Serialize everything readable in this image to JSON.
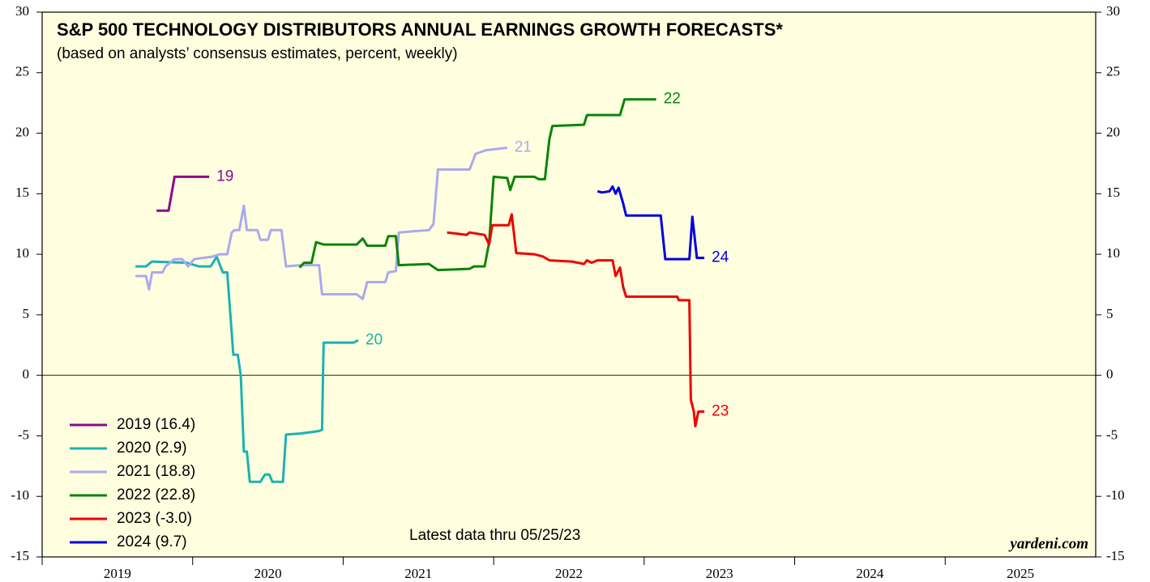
{
  "chart_data": {
    "type": "line",
    "title": "S&P 500 TECHNOLOGY DISTRIBUTORS ANNUAL EARNINGS GROWTH FORECASTS*",
    "subtitle": "(based on analysts’ consensus estimates, percent, weekly)",
    "annotations": [
      "Latest data thru  05/25/23",
      "yardeni.com"
    ],
    "xlim": [
      2019,
      2026
    ],
    "xticks": [
      {
        "value": 2019,
        "label": "2019"
      },
      {
        "value": 2020,
        "label": "2020"
      },
      {
        "value": 2021,
        "label": "2021"
      },
      {
        "value": 2022,
        "label": "2022"
      },
      {
        "value": 2023,
        "label": "2023"
      },
      {
        "value": 2024,
        "label": "2024"
      },
      {
        "value": 2025,
        "label": "2025"
      }
    ],
    "ylim": [
      -15,
      30
    ],
    "yticks": [
      -15,
      -10,
      -5,
      0,
      5,
      10,
      15,
      20,
      25,
      30
    ],
    "y2lim": [
      -15,
      30
    ],
    "y2ticks": [
      -15,
      -10,
      -5,
      0,
      5,
      10,
      15,
      20,
      25,
      30
    ],
    "legend": "lower left",
    "series": [
      {
        "name": "2019 (16.4)",
        "end_label": "19",
        "color": "#8b0a8b",
        "x": [
          2019.76,
          2019.84,
          2019.88,
          2020.11
        ],
        "y": [
          13.6,
          13.6,
          16.4,
          16.4
        ]
      },
      {
        "name": "2020 (2.9)",
        "end_label": "20",
        "color": "#1ab2b2",
        "x": [
          2019.62,
          2019.69,
          2019.73,
          2019.96,
          2020.04,
          2020.12,
          2020.16,
          2020.2,
          2020.23,
          2020.27,
          2020.3,
          2020.32,
          2020.34,
          2020.36,
          2020.38,
          2020.45,
          2020.48,
          2020.51,
          2020.53,
          2020.6,
          2020.62,
          2020.72,
          2020.84,
          2020.86,
          2020.87,
          2021.07,
          2021.1
        ],
        "y": [
          9.0,
          9.0,
          9.4,
          9.3,
          9.0,
          9.0,
          9.8,
          8.5,
          8.5,
          1.7,
          1.7,
          0,
          -6.3,
          -6.3,
          -8.8,
          -8.8,
          -8.2,
          -8.2,
          -8.8,
          -8.8,
          -4.9,
          -4.8,
          -4.6,
          -4.5,
          2.7,
          2.7,
          2.9
        ]
      },
      {
        "name": "2021 (18.8)",
        "end_label": "21",
        "color": "#aaaaee",
        "x": [
          2019.62,
          2019.69,
          2019.71,
          2019.73,
          2019.8,
          2019.82,
          2019.88,
          2019.93,
          2019.97,
          2020.01,
          2020.13,
          2020.18,
          2020.23,
          2020.26,
          2020.28,
          2020.31,
          2020.34,
          2020.36,
          2020.43,
          2020.45,
          2020.5,
          2020.52,
          2020.59,
          2020.62,
          2020.71,
          2020.84,
          2020.86,
          2021.09,
          2021.13,
          2021.16,
          2021.28,
          2021.3,
          2021.35,
          2021.37,
          2021.57,
          2021.6,
          2021.63,
          2021.84,
          2021.88,
          2021.95,
          2022.09
        ],
        "y": [
          8.2,
          8.2,
          7.1,
          8.5,
          8.5,
          9.0,
          9.6,
          9.6,
          9.0,
          9.6,
          9.8,
          10.0,
          10.0,
          11.8,
          12.0,
          12.0,
          14.0,
          12.0,
          12.0,
          11.2,
          11.2,
          12.0,
          12.0,
          9.0,
          9.1,
          9.1,
          6.7,
          6.7,
          6.3,
          7.7,
          7.7,
          8.5,
          8.6,
          11.8,
          12.0,
          12.5,
          17.0,
          17.0,
          18.3,
          18.6,
          18.8
        ]
      },
      {
        "name": "2022 (22.8)",
        "end_label": "22",
        "color": "#0a840a",
        "x": [
          2020.71,
          2020.74,
          2020.79,
          2020.82,
          2020.87,
          2021.09,
          2021.13,
          2021.16,
          2021.28,
          2021.3,
          2021.35,
          2021.37,
          2021.57,
          2021.63,
          2021.84,
          2021.87,
          2021.94,
          2021.97,
          2022.0,
          2022.09,
          2022.11,
          2022.14,
          2022.27,
          2022.3,
          2022.34,
          2022.37,
          2022.39,
          2022.6,
          2022.62,
          2022.84,
          2022.87,
          2023.08
        ],
        "y": [
          8.9,
          9.3,
          9.3,
          11.0,
          10.8,
          10.8,
          11.3,
          10.7,
          10.7,
          11.5,
          11.5,
          9.1,
          9.2,
          8.7,
          8.8,
          9.0,
          9.0,
          11.0,
          16.4,
          16.3,
          15.3,
          16.4,
          16.4,
          16.2,
          16.2,
          19.5,
          20.6,
          20.7,
          21.5,
          21.5,
          22.8,
          22.8
        ]
      },
      {
        "name": "2023 (-3.0)",
        "end_label": "23",
        "color": "#ee0000",
        "x": [
          2021.69,
          2021.76,
          2021.82,
          2021.84,
          2021.94,
          2021.97,
          2021.99,
          2022.1,
          2022.12,
          2022.15,
          2022.27,
          2022.33,
          2022.37,
          2022.52,
          2022.6,
          2022.62,
          2022.65,
          2022.69,
          2022.79,
          2022.81,
          2022.84,
          2022.86,
          2022.88,
          2023.22,
          2023.23,
          2023.3,
          2023.31,
          2023.33,
          2023.34,
          2023.36,
          2023.4
        ],
        "y": [
          11.8,
          11.7,
          11.6,
          11.8,
          11.6,
          10.8,
          12.4,
          12.4,
          13.3,
          10.1,
          10.0,
          9.8,
          9.5,
          9.4,
          9.2,
          9.5,
          9.3,
          9.5,
          9.5,
          8.2,
          8.9,
          7.3,
          6.5,
          6.5,
          6.2,
          6.2,
          -2.0,
          -3.0,
          -4.2,
          -3.0,
          -3.0
        ]
      },
      {
        "name": "2024 (9.7)",
        "end_label": "24",
        "color": "#0000dd",
        "x": [
          2022.69,
          2022.72,
          2022.77,
          2022.79,
          2022.81,
          2022.83,
          2022.86,
          2022.88,
          2023.11,
          2023.14,
          2023.3,
          2023.32,
          2023.35,
          2023.4
        ],
        "y": [
          15.2,
          15.1,
          15.2,
          15.6,
          15.0,
          15.5,
          14.2,
          13.2,
          13.2,
          9.6,
          9.6,
          13.1,
          9.7,
          9.7
        ]
      }
    ]
  }
}
